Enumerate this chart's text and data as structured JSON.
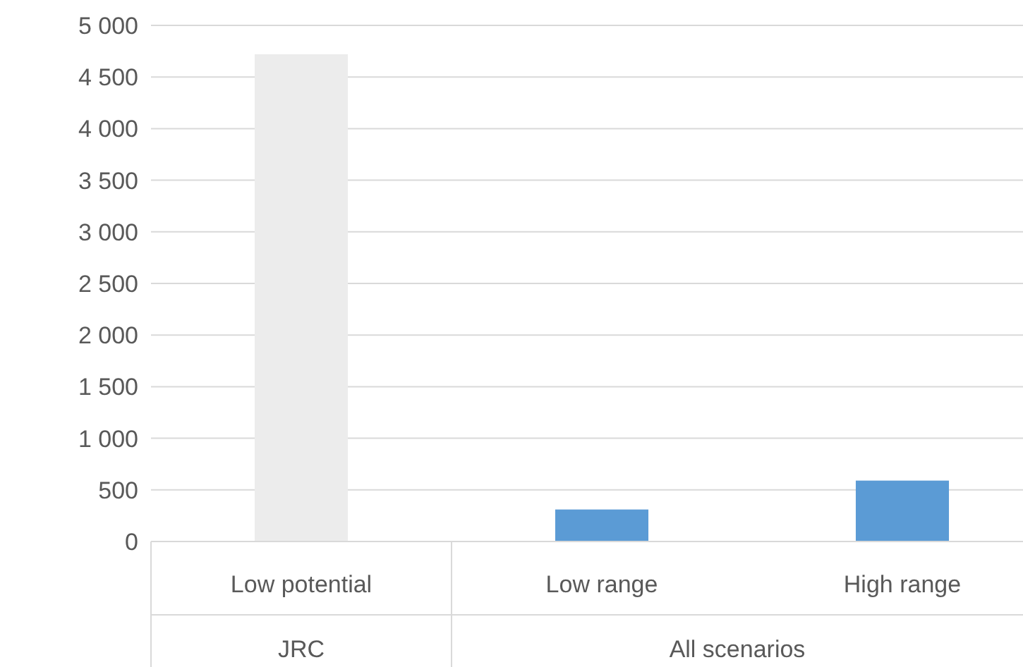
{
  "chart_data": {
    "type": "bar",
    "categories": [
      "Low potential",
      "Low range",
      "High range"
    ],
    "values": [
      4720,
      310,
      590
    ],
    "colors": [
      "#ececec",
      "#5b9bd5",
      "#5b9bd5"
    ],
    "ylim": [
      0,
      5000
    ],
    "yticks": [
      {
        "value": 0,
        "label": "0"
      },
      {
        "value": 500,
        "label": "500"
      },
      {
        "value": 1000,
        "label": "1 000"
      },
      {
        "value": 1500,
        "label": "1 500"
      },
      {
        "value": 2000,
        "label": "2 000"
      },
      {
        "value": 2500,
        "label": "2 500"
      },
      {
        "value": 3000,
        "label": "3 000"
      },
      {
        "value": 3500,
        "label": "3 500"
      },
      {
        "value": 4000,
        "label": "4 000"
      },
      {
        "value": 4500,
        "label": "4 500"
      },
      {
        "value": 5000,
        "label": "5 000"
      }
    ],
    "grid": "y",
    "annotations": [
      "JRC",
      "All scenarios"
    ]
  }
}
